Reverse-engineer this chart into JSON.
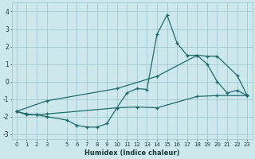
{
  "xlabel": "Humidex (Indice chaleur)",
  "bg_color": "#cde8ec",
  "grid_color": "#a8cdd4",
  "line_color": "#1e6b6b",
  "xlim": [
    -0.5,
    23.5
  ],
  "ylim": [
    -3.3,
    4.5
  ],
  "xticks": [
    0,
    1,
    2,
    3,
    5,
    6,
    7,
    8,
    9,
    10,
    11,
    12,
    13,
    14,
    15,
    16,
    17,
    18,
    19,
    20,
    21,
    22,
    23
  ],
  "yticks": [
    -3,
    -2,
    -1,
    0,
    1,
    2,
    3,
    4
  ],
  "series_main": [
    [
      0,
      -1.7
    ],
    [
      1,
      -1.9
    ],
    [
      2,
      -1.9
    ],
    [
      3,
      -2.0
    ],
    [
      5,
      -2.2
    ],
    [
      6,
      -2.5
    ],
    [
      7,
      -2.6
    ],
    [
      8,
      -2.6
    ],
    [
      9,
      -2.4
    ],
    [
      10,
      -1.5
    ],
    [
      11,
      -0.65
    ],
    [
      12,
      -0.4
    ],
    [
      13,
      -0.45
    ],
    [
      14,
      2.7
    ],
    [
      15,
      3.8
    ],
    [
      16,
      2.2
    ],
    [
      17,
      1.5
    ],
    [
      18,
      1.5
    ],
    [
      19,
      1.0
    ],
    [
      20,
      0.0
    ],
    [
      21,
      -0.65
    ],
    [
      22,
      -0.5
    ],
    [
      23,
      -0.8
    ]
  ],
  "series_upper": [
    [
      0,
      -1.7
    ],
    [
      3,
      -1.1
    ],
    [
      10,
      -0.4
    ],
    [
      14,
      0.3
    ],
    [
      18,
      1.5
    ],
    [
      19,
      1.45
    ],
    [
      20,
      1.45
    ],
    [
      22,
      0.35
    ],
    [
      23,
      -0.8
    ]
  ],
  "series_lower": [
    [
      0,
      -1.7
    ],
    [
      1,
      -1.85
    ],
    [
      2,
      -1.9
    ],
    [
      3,
      -1.85
    ],
    [
      10,
      -1.5
    ],
    [
      12,
      -1.45
    ],
    [
      14,
      -1.5
    ],
    [
      18,
      -0.85
    ],
    [
      20,
      -0.8
    ],
    [
      23,
      -0.8
    ]
  ]
}
